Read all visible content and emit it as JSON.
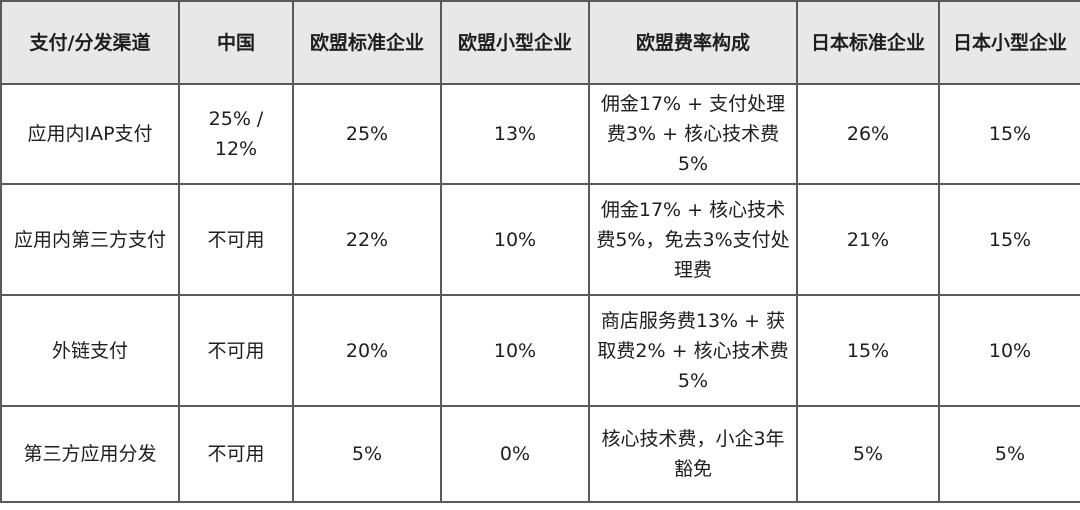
{
  "headers": [
    "支付/分发渠道",
    "中国",
    "欧盟标准企业",
    "欧盟小型企业",
    "欧盟费率构成",
    "日本标准企业",
    "日本小型企业"
  ],
  "rows": [
    [
      "应用内IAP支付",
      "25% / 12%",
      "25%",
      "13%",
      "佣金17% + 支付处理费3% + 核心技术费5%",
      "26%",
      "15%"
    ],
    [
      "应用内第三方支付",
      "不可用",
      "22%",
      "10%",
      "佣金17% + 核心技术费5%，免去3%支付处理费",
      "21%",
      "15%"
    ],
    [
      "外链支付",
      "不可用",
      "20%",
      "10%",
      "商店服务费13% + 获取费2% + 核心技术费5%",
      "15%",
      "10%"
    ],
    [
      "第三方应用分发",
      "不可用",
      "5%",
      "0%",
      "核心技术费，小企3年豁免",
      "5%",
      "5%"
    ]
  ]
}
